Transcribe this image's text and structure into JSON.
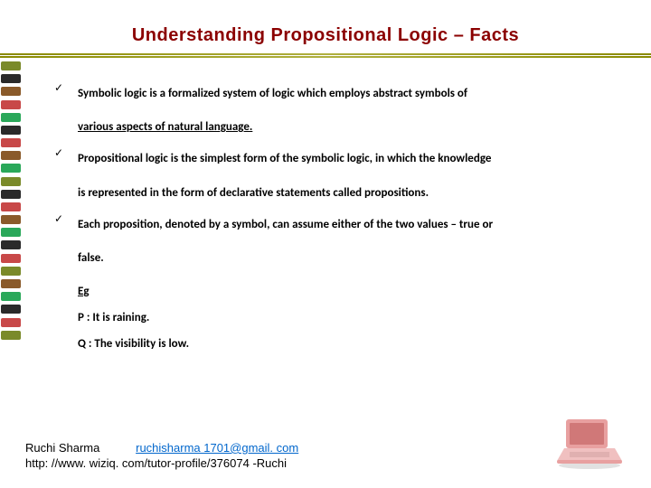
{
  "title": "Understanding Propositional Logic – Facts",
  "bullets": [
    {
      "check": "✓",
      "line1": "Symbolic logic is a formalized system of logic which employs abstract symbols of",
      "line2": "various aspects of natural language."
    },
    {
      "check": "✓",
      "line1": "Propositional logic is the simplest form of the symbolic logic, in which the knowledge",
      "line2": "is represented in the form of declarative statements called propositions."
    },
    {
      "check": "✓",
      "line1": "Each proposition, denoted by a symbol, can assume either of the two values – true or",
      "line2": "false."
    }
  ],
  "examples": {
    "eg": "Eg",
    "p": "P :  It is raining.",
    "q": "Q :  The visibility is low."
  },
  "footer": {
    "name": "Ruchi Sharma",
    "email": "ruchisharma 1701@gmail. com",
    "url": "http: //www. wiziq. com/tutor-profile/376074 -Ruchi"
  },
  "deco_colors": [
    "#7a8a2a",
    "#2a2a2a",
    "#8a5a2a",
    "#c84848",
    "#2aa85a",
    "#2a2a2a",
    "#c84848",
    "#8a5a2a",
    "#2aa85a",
    "#7a8a2a",
    "#2a2a2a",
    "#c84848",
    "#8a5a2a",
    "#2aa85a",
    "#2a2a2a",
    "#c84848",
    "#7a8a2a",
    "#8a5a2a",
    "#2aa85a",
    "#2a2a2a",
    "#c84848",
    "#7a8a2a"
  ],
  "laptop": {
    "body_color": "#e8a0a0",
    "screen_color": "#d07878",
    "shadow_color": "#c4c4c4"
  }
}
